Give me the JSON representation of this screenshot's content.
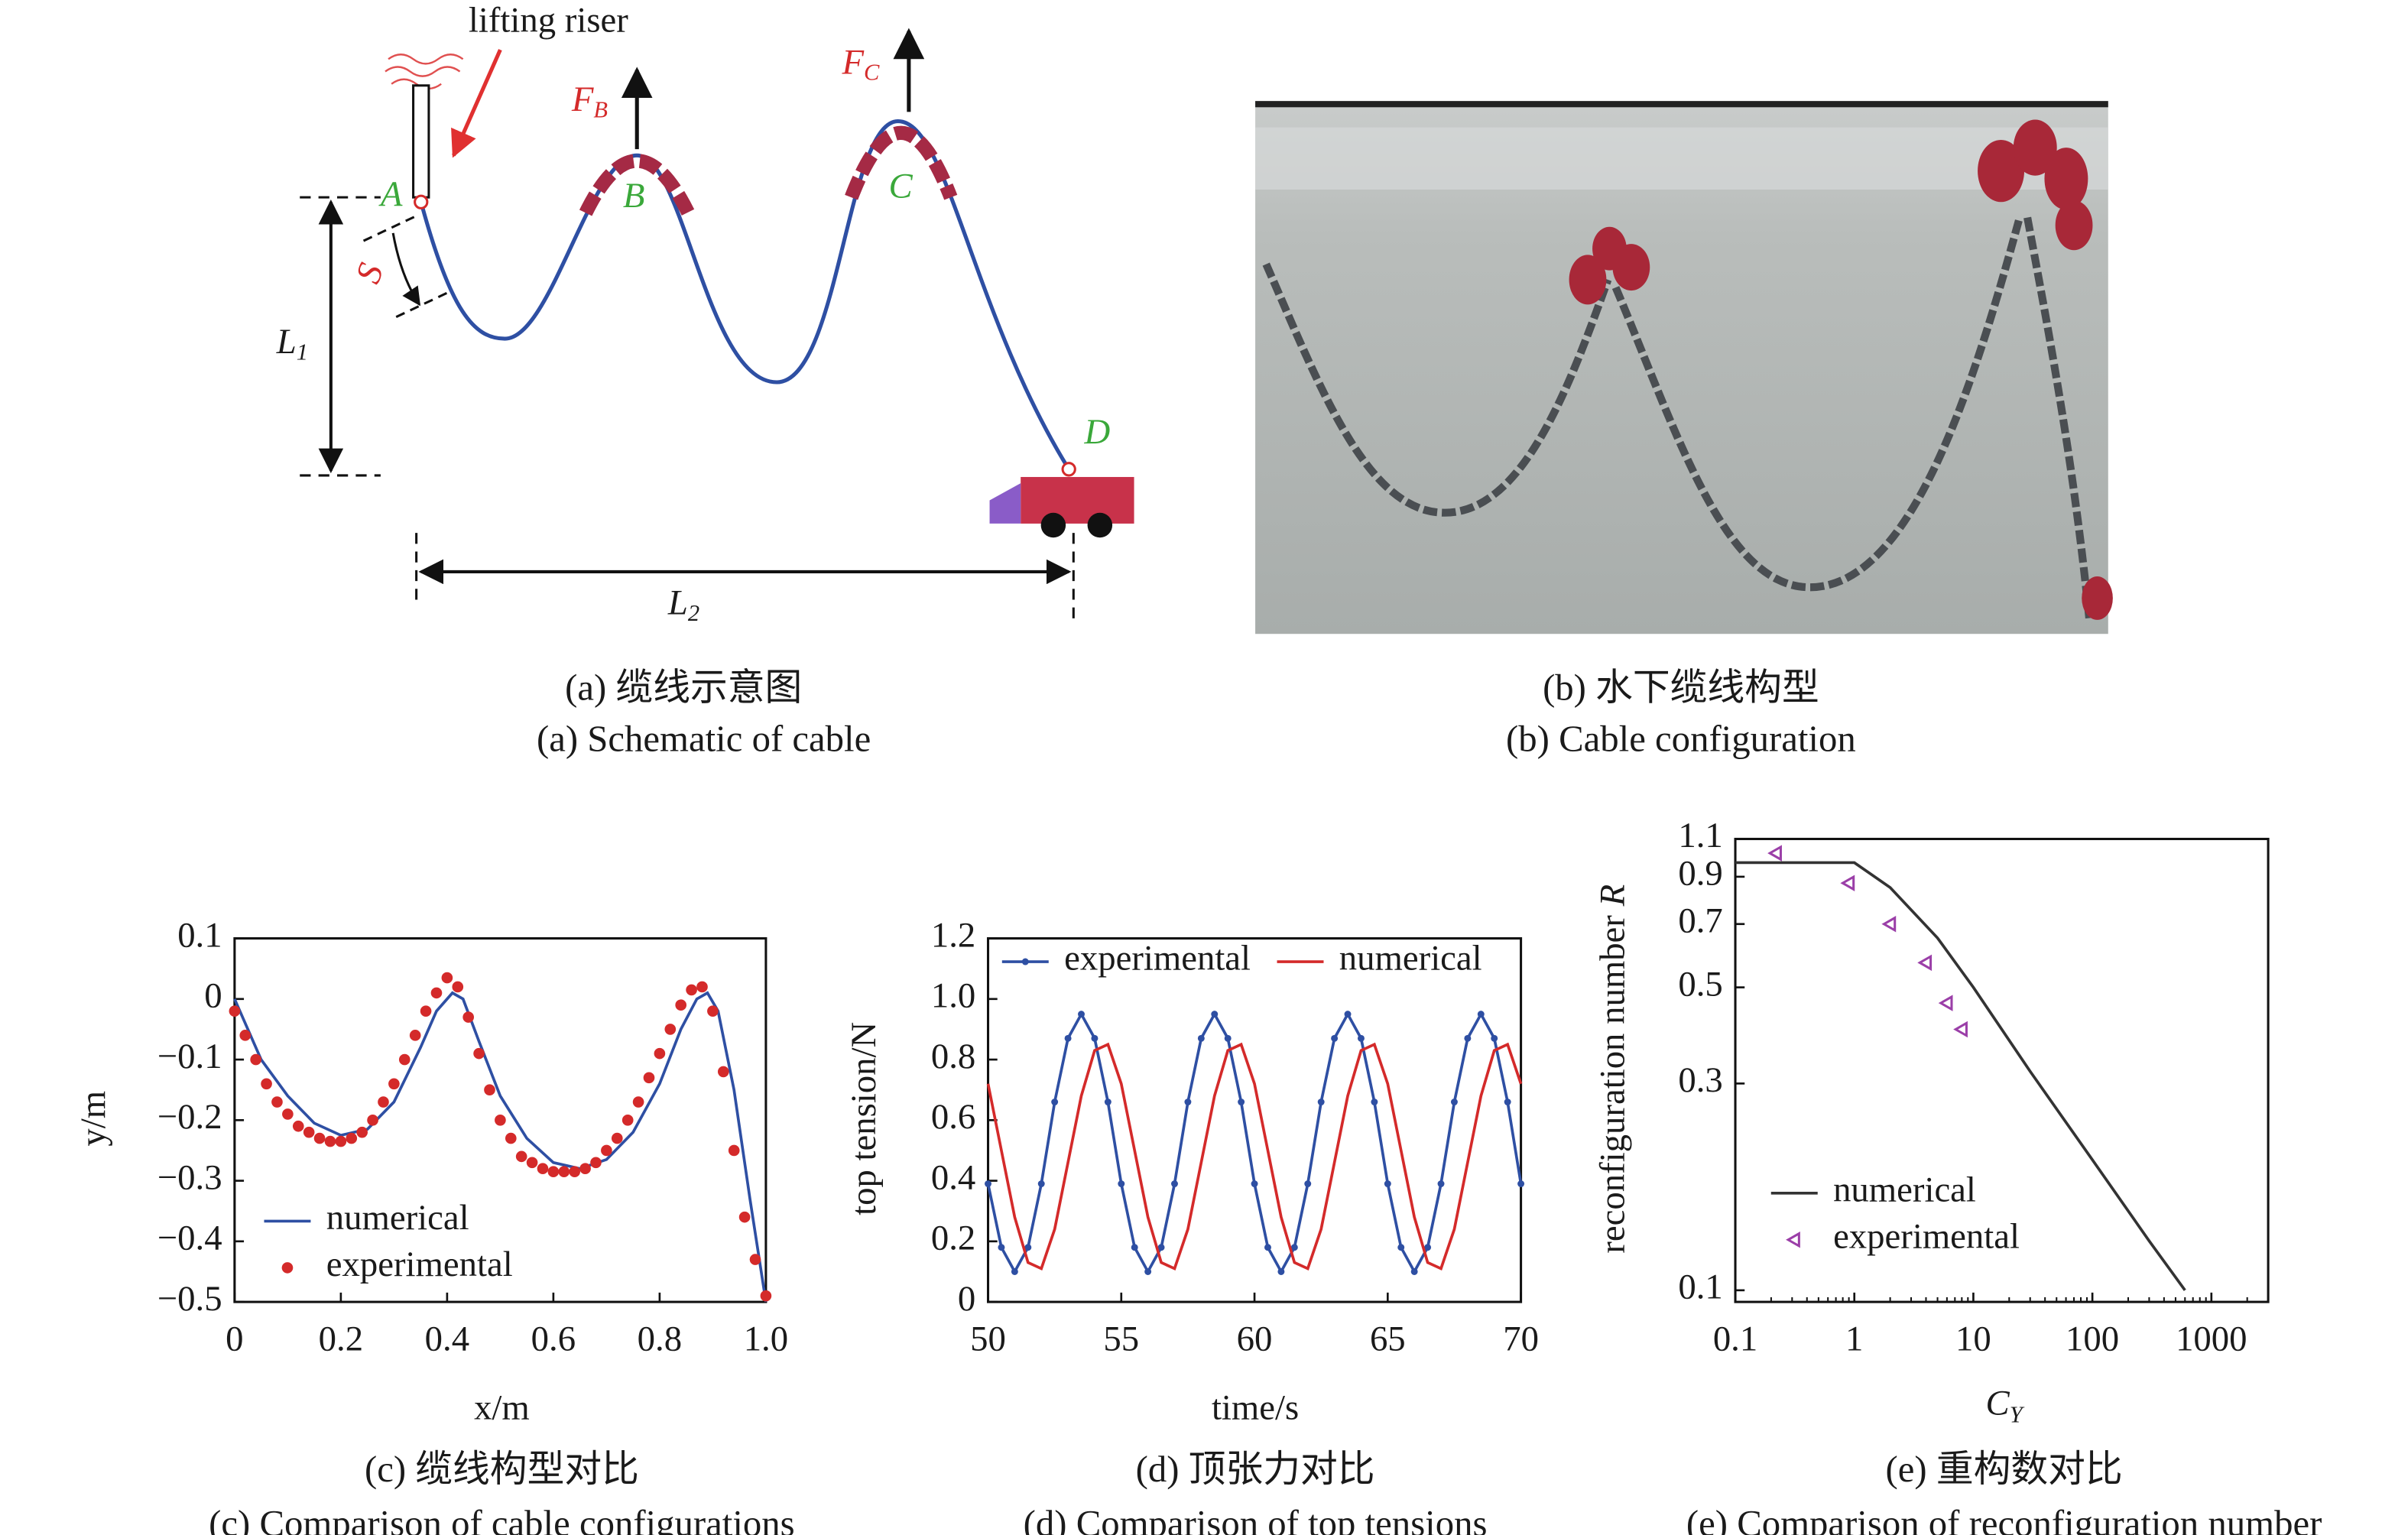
{
  "panels": {
    "a": {
      "caption_zh": "(a) 缆线示意图",
      "caption_en": "(a) Schematic of cable",
      "riser": "lifting riser",
      "nodes": [
        "A",
        "B",
        "C",
        "D"
      ],
      "force_B": [
        "F",
        "B"
      ],
      "force_C": [
        "F",
        "C"
      ],
      "L1": [
        "L",
        "1"
      ],
      "L2": [
        "L",
        "2"
      ],
      "arc": "S"
    },
    "b": {
      "caption_zh": "(b) 水下缆线构型",
      "caption_en": "(b) Cable configuration"
    }
  },
  "chart_data": [
    {
      "type": "line",
      "caption_zh": "(c) 缆线构型对比",
      "caption_en": "(c) Comparison of cable configurations",
      "x_label": "x/m",
      "y_label": "y/m",
      "legend": "lower left",
      "xlim": [
        0,
        1
      ],
      "ylim": [
        -0.5,
        0.1
      ],
      "xticks": [
        0,
        0.2,
        0.4,
        0.6,
        0.8,
        {
          "value": 1,
          "label": "1.0"
        }
      ],
      "yticks": [
        0.1,
        0,
        {
          "value": -0.1,
          "label": "−0.1"
        },
        {
          "value": -0.2,
          "label": "−0.2"
        },
        {
          "value": -0.3,
          "label": "−0.3"
        },
        {
          "value": -0.4,
          "label": "−0.4"
        },
        {
          "value": -0.5,
          "label": "−0.5"
        }
      ],
      "series": [
        {
          "name": "numerical",
          "color": "#2e4fa3",
          "style": "line",
          "x": [
            0,
            0.05,
            0.1,
            0.15,
            0.2,
            0.25,
            0.3,
            0.35,
            0.38,
            0.41,
            0.43,
            0.46,
            0.5,
            0.55,
            0.6,
            0.65,
            0.7,
            0.75,
            0.8,
            0.84,
            0.87,
            0.89,
            0.91,
            0.94,
            0.97,
            1
          ],
          "values": [
            0,
            -0.1,
            -0.16,
            -0.205,
            -0.225,
            -0.215,
            -0.17,
            -0.08,
            -0.02,
            0.01,
            0,
            -0.07,
            -0.16,
            -0.23,
            -0.27,
            -0.28,
            -0.265,
            -0.22,
            -0.14,
            -0.05,
            0,
            0.01,
            -0.02,
            -0.15,
            -0.33,
            -0.5
          ]
        },
        {
          "name": "experimental",
          "color": "#d42a2a",
          "style": "markers",
          "x": [
            0,
            0.02,
            0.04,
            0.06,
            0.08,
            0.1,
            0.12,
            0.14,
            0.16,
            0.18,
            0.2,
            0.22,
            0.24,
            0.26,
            0.28,
            0.3,
            0.32,
            0.34,
            0.36,
            0.38,
            0.4,
            0.42,
            0.44,
            0.46,
            0.48,
            0.5,
            0.52,
            0.54,
            0.56,
            0.58,
            0.6,
            0.62,
            0.64,
            0.66,
            0.68,
            0.7,
            0.72,
            0.74,
            0.76,
            0.78,
            0.8,
            0.82,
            0.84,
            0.86,
            0.88,
            0.9,
            0.92,
            0.94,
            0.96,
            0.98,
            1
          ],
          "values": [
            -0.02,
            -0.06,
            -0.1,
            -0.14,
            -0.17,
            -0.19,
            -0.21,
            -0.22,
            -0.23,
            -0.235,
            -0.235,
            -0.23,
            -0.22,
            -0.2,
            -0.17,
            -0.14,
            -0.1,
            -0.06,
            -0.02,
            0.01,
            0.035,
            0.02,
            -0.03,
            -0.09,
            -0.15,
            -0.2,
            -0.23,
            -0.26,
            -0.27,
            -0.28,
            -0.285,
            -0.285,
            -0.285,
            -0.28,
            -0.27,
            -0.25,
            -0.23,
            -0.2,
            -0.17,
            -0.13,
            -0.09,
            -0.05,
            -0.01,
            0.015,
            0.02,
            -0.02,
            -0.12,
            -0.25,
            -0.36,
            -0.43,
            -0.49
          ]
        }
      ]
    },
    {
      "type": "line",
      "caption_zh": "(d) 顶张力对比",
      "caption_en": "(d) Comparison of top tensions",
      "x_label": "time/s",
      "y_label": "top tension/N",
      "legend": "upper center",
      "xlim": [
        50,
        70
      ],
      "ylim": [
        0,
        1.2
      ],
      "xticks": [
        50,
        55,
        60,
        65,
        70
      ],
      "yticks": [
        0,
        0.2,
        0.4,
        0.6,
        0.8,
        {
          "value": 1,
          "label": "1.0"
        },
        1.2
      ],
      "series": [
        {
          "name": "experimental",
          "color": "#2e4fa3",
          "style": "line-markers",
          "x": [
            50,
            50.5,
            51,
            51.5,
            52,
            52.5,
            53,
            53.5,
            54,
            54.5,
            55,
            55.5,
            56,
            56.5,
            57,
            57.5,
            58,
            58.5,
            59,
            59.5,
            60,
            60.5,
            61,
            61.5,
            62,
            62.5,
            63,
            63.5,
            64,
            64.5,
            65,
            65.5,
            66,
            66.5,
            67,
            67.5,
            68,
            68.5,
            69,
            69.5,
            70
          ],
          "values": [
            0.39,
            0.18,
            0.1,
            0.18,
            0.39,
            0.66,
            0.87,
            0.95,
            0.87,
            0.66,
            0.39,
            0.18,
            0.1,
            0.18,
            0.39,
            0.66,
            0.87,
            0.95,
            0.87,
            0.66,
            0.39,
            0.18,
            0.1,
            0.18,
            0.39,
            0.66,
            0.87,
            0.95,
            0.87,
            0.66,
            0.39,
            0.18,
            0.1,
            0.18,
            0.39,
            0.66,
            0.87,
            0.95,
            0.87,
            0.66,
            0.39
          ]
        },
        {
          "name": "numerical",
          "color": "#d42a2a",
          "style": "line",
          "x": [
            50,
            50.5,
            51,
            51.5,
            52,
            52.5,
            53,
            53.5,
            54,
            54.5,
            55,
            55.5,
            56,
            56.5,
            57,
            57.5,
            58,
            58.5,
            59,
            59.5,
            60,
            60.5,
            61,
            61.5,
            62,
            62.5,
            63,
            63.5,
            64,
            64.5,
            65,
            65.5,
            66,
            66.5,
            67,
            67.5,
            68,
            68.5,
            69,
            69.5,
            70
          ],
          "values": [
            0.72,
            0.5,
            0.28,
            0.13,
            0.11,
            0.24,
            0.46,
            0.68,
            0.83,
            0.85,
            0.72,
            0.5,
            0.28,
            0.13,
            0.11,
            0.24,
            0.46,
            0.68,
            0.83,
            0.85,
            0.72,
            0.5,
            0.28,
            0.13,
            0.11,
            0.24,
            0.46,
            0.68,
            0.83,
            0.85,
            0.72,
            0.5,
            0.28,
            0.13,
            0.11,
            0.24,
            0.46,
            0.68,
            0.83,
            0.85,
            0.72
          ]
        }
      ]
    },
    {
      "type": "line",
      "caption_zh": "(e) 重构数对比",
      "caption_en": "(e) Comparison of reconfiguration number",
      "x_label": "C",
      "x_label_sub": "Y",
      "y_label": "reconfiguration number",
      "y_label_var": "R",
      "legend": "lower left",
      "xscale": "log",
      "yscale": "log",
      "xlim": [
        0.1,
        3000
      ],
      "ylim": [
        0.094,
        1.1
      ],
      "xticks": [
        0.1,
        1,
        10,
        100,
        1000
      ],
      "yticks": [
        0.1,
        0.3,
        0.5,
        0.7,
        0.9,
        1.1
      ],
      "series": [
        {
          "name": "numerical",
          "color": "#333333",
          "style": "line",
          "x": [
            0.1,
            1,
            2,
            5,
            10,
            30,
            100,
            300,
            600
          ],
          "values": [
            0.97,
            0.97,
            0.85,
            0.65,
            0.5,
            0.32,
            0.2,
            0.13,
            0.1
          ]
        },
        {
          "name": "experimental",
          "color": "#9b3fa8",
          "style": "triangles",
          "x": [
            0.22,
            0.9,
            2,
            4,
            6,
            8
          ],
          "values": [
            1.02,
            0.87,
            0.7,
            0.57,
            0.46,
            0.4
          ]
        }
      ]
    }
  ]
}
